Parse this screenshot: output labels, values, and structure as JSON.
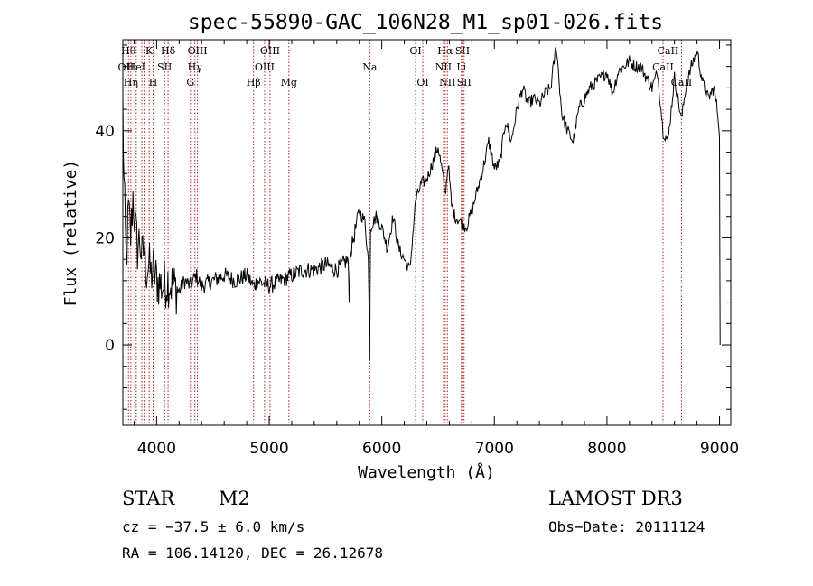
{
  "chart_data": {
    "type": "line",
    "title": "spec-55890-GAC_106N28_M1_sp01-026.fits",
    "xlabel": "Wavelength (Å)",
    "ylabel": "Flux (relative)",
    "xlim": [
      3700,
      9100
    ],
    "ylim": [
      -15,
      57
    ],
    "xticks": [
      4000,
      5000,
      6000,
      7000,
      8000,
      9000
    ],
    "yticks": [
      0,
      20,
      40
    ],
    "series": [
      {
        "name": "flux",
        "color": "#000000",
        "x": [
          3700,
          3710,
          3730,
          3750,
          3770,
          3790,
          3810,
          3830,
          3850,
          3870,
          3890,
          3910,
          3930,
          3950,
          3970,
          4000,
          4050,
          4100,
          4150,
          4200,
          4250,
          4300,
          4350,
          4400,
          4500,
          4600,
          4700,
          4800,
          4860,
          4900,
          5000,
          5100,
          5200,
          5300,
          5400,
          5500,
          5600,
          5700,
          5710,
          5720,
          5750,
          5800,
          5850,
          5880,
          5893,
          5900,
          5950,
          6000,
          6050,
          6100,
          6150,
          6200,
          6250,
          6300,
          6350,
          6400,
          6450,
          6500,
          6540,
          6563,
          6590,
          6620,
          6650,
          6700,
          6750,
          6800,
          6850,
          6900,
          6950,
          7000,
          7050,
          7100,
          7150,
          7200,
          7250,
          7300,
          7350,
          7400,
          7450,
          7500,
          7550,
          7600,
          7650,
          7700,
          7750,
          7800,
          7850,
          7900,
          7950,
          8000,
          8050,
          8100,
          8150,
          8200,
          8250,
          8300,
          8350,
          8400,
          8450,
          8498,
          8542,
          8600,
          8662,
          8700,
          8750,
          8800,
          8850,
          8900,
          8950,
          8980,
          9000,
          9005
        ],
        "values": [
          45,
          30,
          15,
          25,
          20,
          28,
          22,
          18,
          20,
          16,
          18,
          14,
          15,
          13,
          14,
          12,
          11,
          12,
          11,
          10,
          12,
          11,
          13,
          11,
          12,
          13,
          12,
          13,
          11,
          12,
          11,
          12,
          13,
          14,
          14,
          15,
          14,
          16,
          8,
          17,
          20,
          25,
          23,
          16,
          -2,
          22,
          24,
          22,
          18,
          24,
          18,
          16,
          14,
          27,
          30,
          31,
          34,
          37,
          32,
          28,
          34,
          26,
          24,
          23,
          22,
          25,
          29,
          33,
          38,
          33,
          34,
          42,
          38,
          44,
          48,
          45,
          46,
          45,
          47,
          48,
          56,
          43,
          40,
          38,
          44,
          46,
          48,
          49,
          50,
          51,
          47,
          51,
          52,
          53,
          52,
          52,
          50,
          48,
          51,
          40,
          38,
          50,
          42,
          48,
          52,
          55,
          49,
          46,
          48,
          44,
          40,
          0
        ]
      }
    ],
    "lines": [
      {
        "x": 3727,
        "label": "OII",
        "row": 1,
        "xmin": 3770,
        "xmax": 3845
      },
      {
        "x": 3750,
        "label": "Hθ",
        "row": 0
      },
      {
        "x": 3771,
        "label": "Hη",
        "row": 2
      },
      {
        "x": 3819,
        "label": "HeI",
        "row": 1
      },
      {
        "x": 3869,
        "label": "",
        "row": 0
      },
      {
        "x": 3889,
        "label": "",
        "row": 0
      },
      {
        "x": 3934,
        "label": "K",
        "row": 0
      },
      {
        "x": 3969,
        "label": "H",
        "row": 2
      },
      {
        "x": 4071,
        "label": "SII",
        "row": 1
      },
      {
        "x": 4102,
        "label": "Hδ",
        "row": 0
      },
      {
        "x": 4300,
        "label": "G",
        "row": 2
      },
      {
        "x": 4340,
        "label": "Hγ",
        "row": 1
      },
      {
        "x": 4363,
        "label": "OIII",
        "row": 0
      },
      {
        "x": 4861,
        "label": "Hβ",
        "row": 2
      },
      {
        "x": 4959,
        "label": "OIII",
        "row": 1
      },
      {
        "x": 5007,
        "label": "OIII",
        "row": 0
      },
      {
        "x": 5175,
        "label": "Mg",
        "row": 2
      },
      {
        "x": 5893,
        "label": "Na",
        "row": 1
      },
      {
        "x": 6300,
        "label": "OI",
        "row": 0
      },
      {
        "x": 6364,
        "label": "OI",
        "row": 2
      },
      {
        "x": 6548,
        "label": "NII",
        "row": 1
      },
      {
        "x": 6563,
        "label": "Hα",
        "row": 0
      },
      {
        "x": 6583,
        "label": "NII",
        "row": 2
      },
      {
        "x": 6707,
        "label": "Li",
        "row": 1
      },
      {
        "x": 6717,
        "label": "SII",
        "row": 0
      },
      {
        "x": 6731,
        "label": "SII",
        "row": 2
      },
      {
        "x": 8498,
        "label": "CaII",
        "row": 1
      },
      {
        "x": 8542,
        "label": "CaII",
        "row": 0
      },
      {
        "x": 8662,
        "label": "CaII",
        "row": 2
      }
    ]
  },
  "info": {
    "class": "STAR",
    "subclass": "M2",
    "survey": "LAMOST DR3",
    "cz": "cz = −37.5 ± 6.0 km/s",
    "obsdate": "Obs−Date: 20111124",
    "radec": "RA = 106.14120, DEC =  26.12678"
  }
}
